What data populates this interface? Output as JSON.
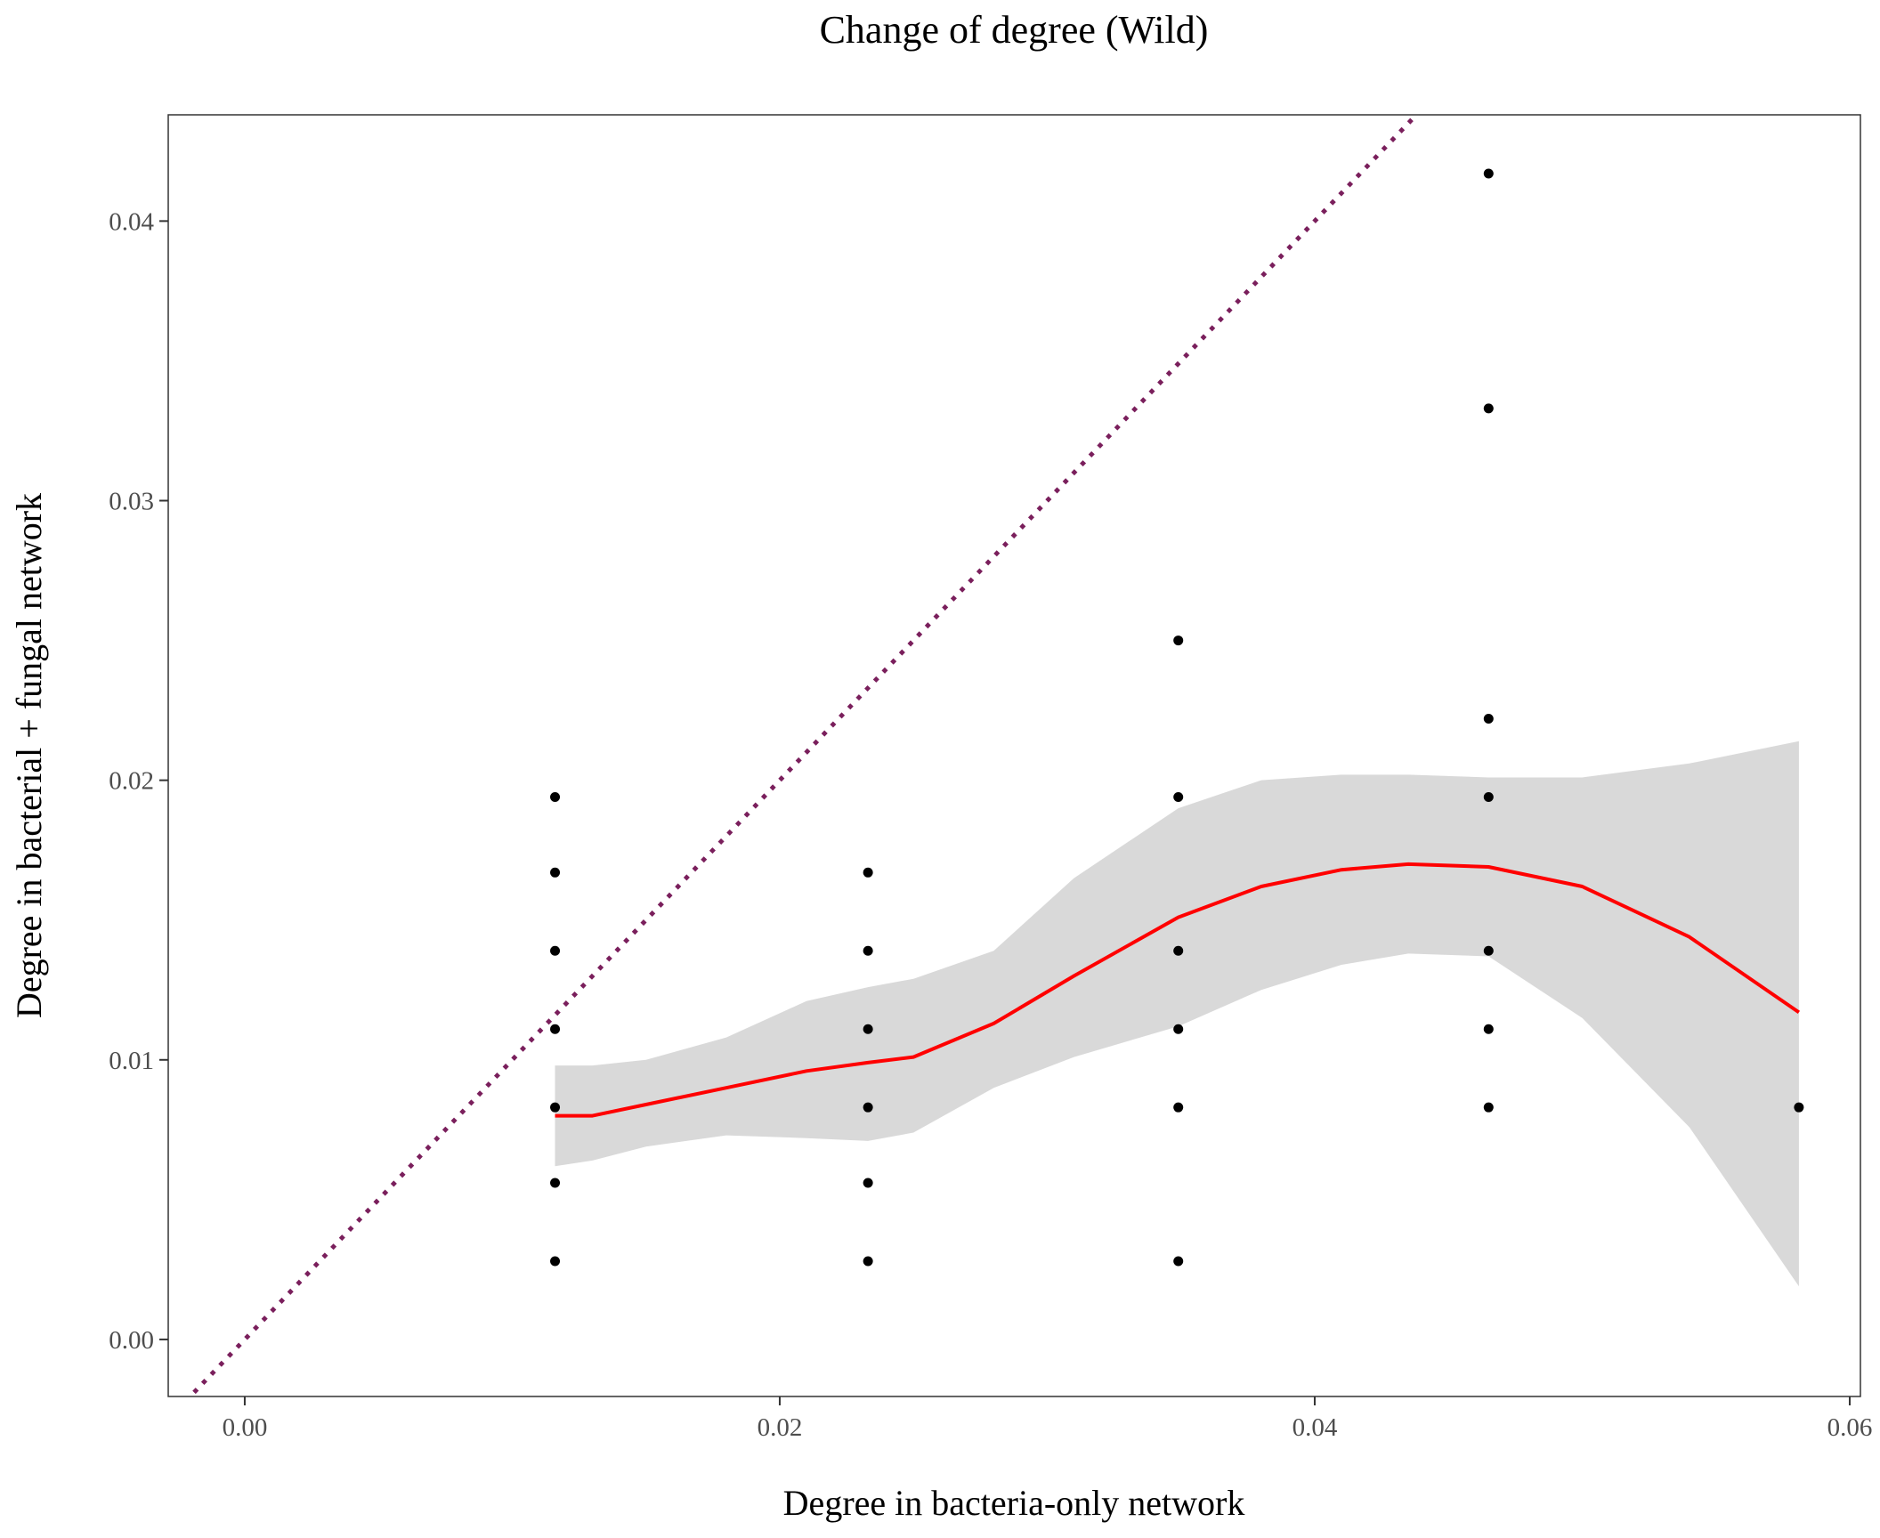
{
  "chart_data": {
    "type": "scatter",
    "title": "Change of degree (Wild)",
    "xlabel": "Degree in bacteria-only network",
    "ylabel": "Degree in bacterial + fungal network",
    "xlim": [
      -0.00286,
      0.0604
    ],
    "ylim": [
      -0.00204,
      0.0438
    ],
    "x_ticks": [
      "0.00",
      "0.02",
      "0.04",
      "0.06"
    ],
    "y_ticks": [
      "0.00",
      "0.01",
      "0.02",
      "0.03",
      "0.04"
    ],
    "grid": false,
    "legend": "none",
    "points": [
      {
        "x": 0.0116,
        "y": 0.0028
      },
      {
        "x": 0.0116,
        "y": 0.0056
      },
      {
        "x": 0.0116,
        "y": 0.0083
      },
      {
        "x": 0.0116,
        "y": 0.0111
      },
      {
        "x": 0.0116,
        "y": 0.0139
      },
      {
        "x": 0.0116,
        "y": 0.0167
      },
      {
        "x": 0.0116,
        "y": 0.0194
      },
      {
        "x": 0.0233,
        "y": 0.0028
      },
      {
        "x": 0.0233,
        "y": 0.0056
      },
      {
        "x": 0.0233,
        "y": 0.0083
      },
      {
        "x": 0.0233,
        "y": 0.0111
      },
      {
        "x": 0.0233,
        "y": 0.0139
      },
      {
        "x": 0.0233,
        "y": 0.0167
      },
      {
        "x": 0.0349,
        "y": 0.0028
      },
      {
        "x": 0.0349,
        "y": 0.0083
      },
      {
        "x": 0.0349,
        "y": 0.0111
      },
      {
        "x": 0.0349,
        "y": 0.0139
      },
      {
        "x": 0.0349,
        "y": 0.0194
      },
      {
        "x": 0.0349,
        "y": 0.025
      },
      {
        "x": 0.0465,
        "y": 0.0083
      },
      {
        "x": 0.0465,
        "y": 0.0111
      },
      {
        "x": 0.0465,
        "y": 0.0139
      },
      {
        "x": 0.0465,
        "y": 0.0194
      },
      {
        "x": 0.0465,
        "y": 0.0222
      },
      {
        "x": 0.0465,
        "y": 0.0333
      },
      {
        "x": 0.0465,
        "y": 0.0417
      },
      {
        "x": 0.0581,
        "y": 0.0083
      }
    ],
    "smooth": {
      "color": "#ff0000",
      "x": [
        0.0116,
        0.013,
        0.015,
        0.018,
        0.021,
        0.0233,
        0.025,
        0.028,
        0.031,
        0.0349,
        0.038,
        0.041,
        0.0435,
        0.0465,
        0.05,
        0.054,
        0.0581
      ],
      "y": [
        0.008,
        0.008,
        0.0084,
        0.009,
        0.0096,
        0.0099,
        0.0101,
        0.0113,
        0.013,
        0.0151,
        0.0162,
        0.0168,
        0.017,
        0.0169,
        0.0162,
        0.0144,
        0.0117
      ],
      "lower": [
        0.0062,
        0.0064,
        0.0069,
        0.0073,
        0.0072,
        0.0071,
        0.0074,
        0.009,
        0.0101,
        0.0112,
        0.0125,
        0.0134,
        0.0138,
        0.0137,
        0.0115,
        0.0076,
        0.0019
      ],
      "upper": [
        0.0098,
        0.0098,
        0.01,
        0.0108,
        0.0121,
        0.0126,
        0.0129,
        0.0139,
        0.0165,
        0.019,
        0.02,
        0.0202,
        0.0202,
        0.0201,
        0.0201,
        0.0206,
        0.0214
      ]
    },
    "reference_line": {
      "slope": 1,
      "intercept": 0,
      "style": "dotted",
      "color": "#7a1f5c"
    }
  }
}
